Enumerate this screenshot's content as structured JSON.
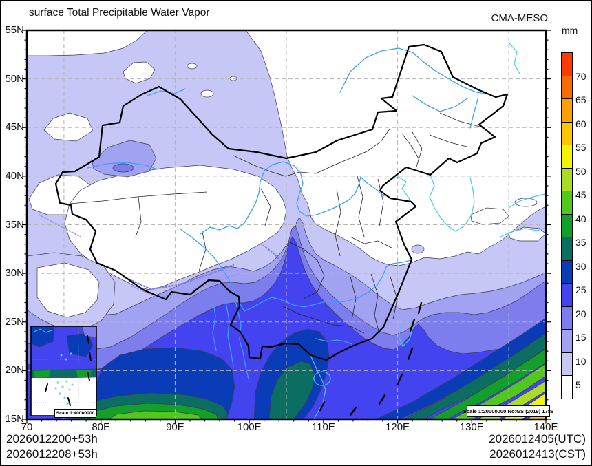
{
  "header": {
    "title": "surface Total Precipitable Water Vapor",
    "model": "CMA-MESO"
  },
  "axes": {
    "lat_labels": [
      "55N",
      "50N",
      "45N",
      "40N",
      "35N",
      "30N",
      "25N",
      "20N",
      "15N"
    ],
    "lon_labels": [
      "70",
      "80E",
      "90E",
      "100E",
      "110E",
      "120E",
      "130E",
      "140E"
    ]
  },
  "colorbar": {
    "unit": "mm",
    "boundary_labels": [
      "70",
      "65",
      "60",
      "55",
      "50",
      "45",
      "40",
      "35",
      "30",
      "25",
      "20",
      "15",
      "10",
      "5"
    ],
    "colors_top_to_bottom": [
      "#f93c00",
      "#f96c00",
      "#f9a005",
      "#f9c802",
      "#f4f400",
      "#aadc26",
      "#52c81e",
      "#12a02a",
      "#0c6e62",
      "#0b3cb8",
      "#4343f0",
      "#7d7dee",
      "#a2a2f3",
      "#c6c6f7",
      "#ffffff"
    ]
  },
  "scale_boxes": {
    "inset": "Scale 1:40000000",
    "main": "Scale 1:20000000 No:GS (2019) 1786"
  },
  "footer": {
    "run_line1": "2026012200+53h",
    "run_line2": "2026012208+53h",
    "valid_line1": "2026012405(UTC)",
    "valid_line2": "2026012413(CST)"
  },
  "map": {
    "palette": {
      "0": "#ffffff",
      "5": "#c6c6f7",
      "10": "#a2a2f3",
      "15": "#7d7dee",
      "20": "#4343f0",
      "25": "#0b3cb8",
      "30": "#0c6e62",
      "35": "#12a02a",
      "40": "#52c81e",
      "45": "#aadc26",
      "50": "#f4f400",
      "55": "#f9c802"
    },
    "line_colors": {
      "border": "#000000",
      "province": "#222222",
      "river": "#3f9dfd",
      "coast": "#45c8f5",
      "grid": "#b5b5b5",
      "contour": "#3a3a55",
      "speckle": "#7b7be0",
      "frame": "#000000"
    }
  }
}
